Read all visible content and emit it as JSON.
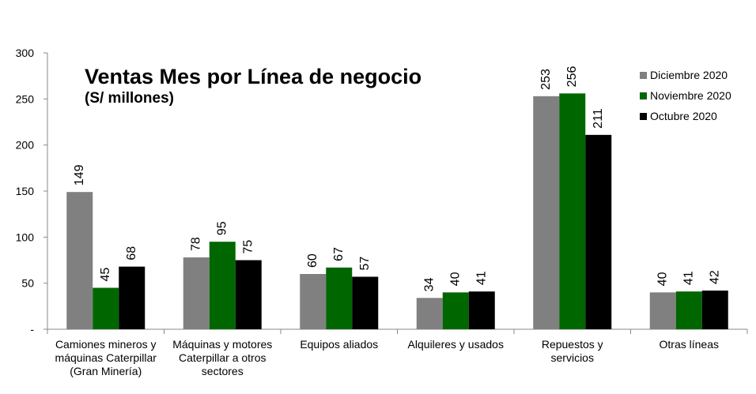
{
  "chart_data": {
    "type": "bar",
    "title": "Ventas Mes por Línea de negocio",
    "subtitle": "(S/ millones)",
    "categories": [
      [
        "Camiones mineros y",
        "máquinas Caterpillar",
        "(Gran Minería)"
      ],
      [
        "Máquinas y motores",
        "Caterpillar a otros",
        "sectores"
      ],
      [
        "Equipos aliados"
      ],
      [
        "Alquileres y usados"
      ],
      [
        "Repuestos y",
        "servicios"
      ],
      [
        "Otras líneas"
      ]
    ],
    "series": [
      {
        "name": "Diciembre 2020",
        "color": "#808080",
        "values": [
          149,
          78,
          60,
          34,
          253,
          40
        ]
      },
      {
        "name": "Noviembre 2020",
        "color": "#006600",
        "values": [
          45,
          95,
          67,
          40,
          256,
          41
        ]
      },
      {
        "name": "Octubre 2020",
        "color": "#000000",
        "values": [
          68,
          75,
          57,
          41,
          211,
          42
        ]
      }
    ],
    "ylim": [
      0,
      300
    ],
    "yticks": [
      "-",
      "50",
      "100",
      "150",
      "200",
      "250",
      "300"
    ],
    "ytick_values": [
      0,
      50,
      100,
      150,
      200,
      250,
      300
    ],
    "grid": false,
    "legend_position": "top-right"
  }
}
